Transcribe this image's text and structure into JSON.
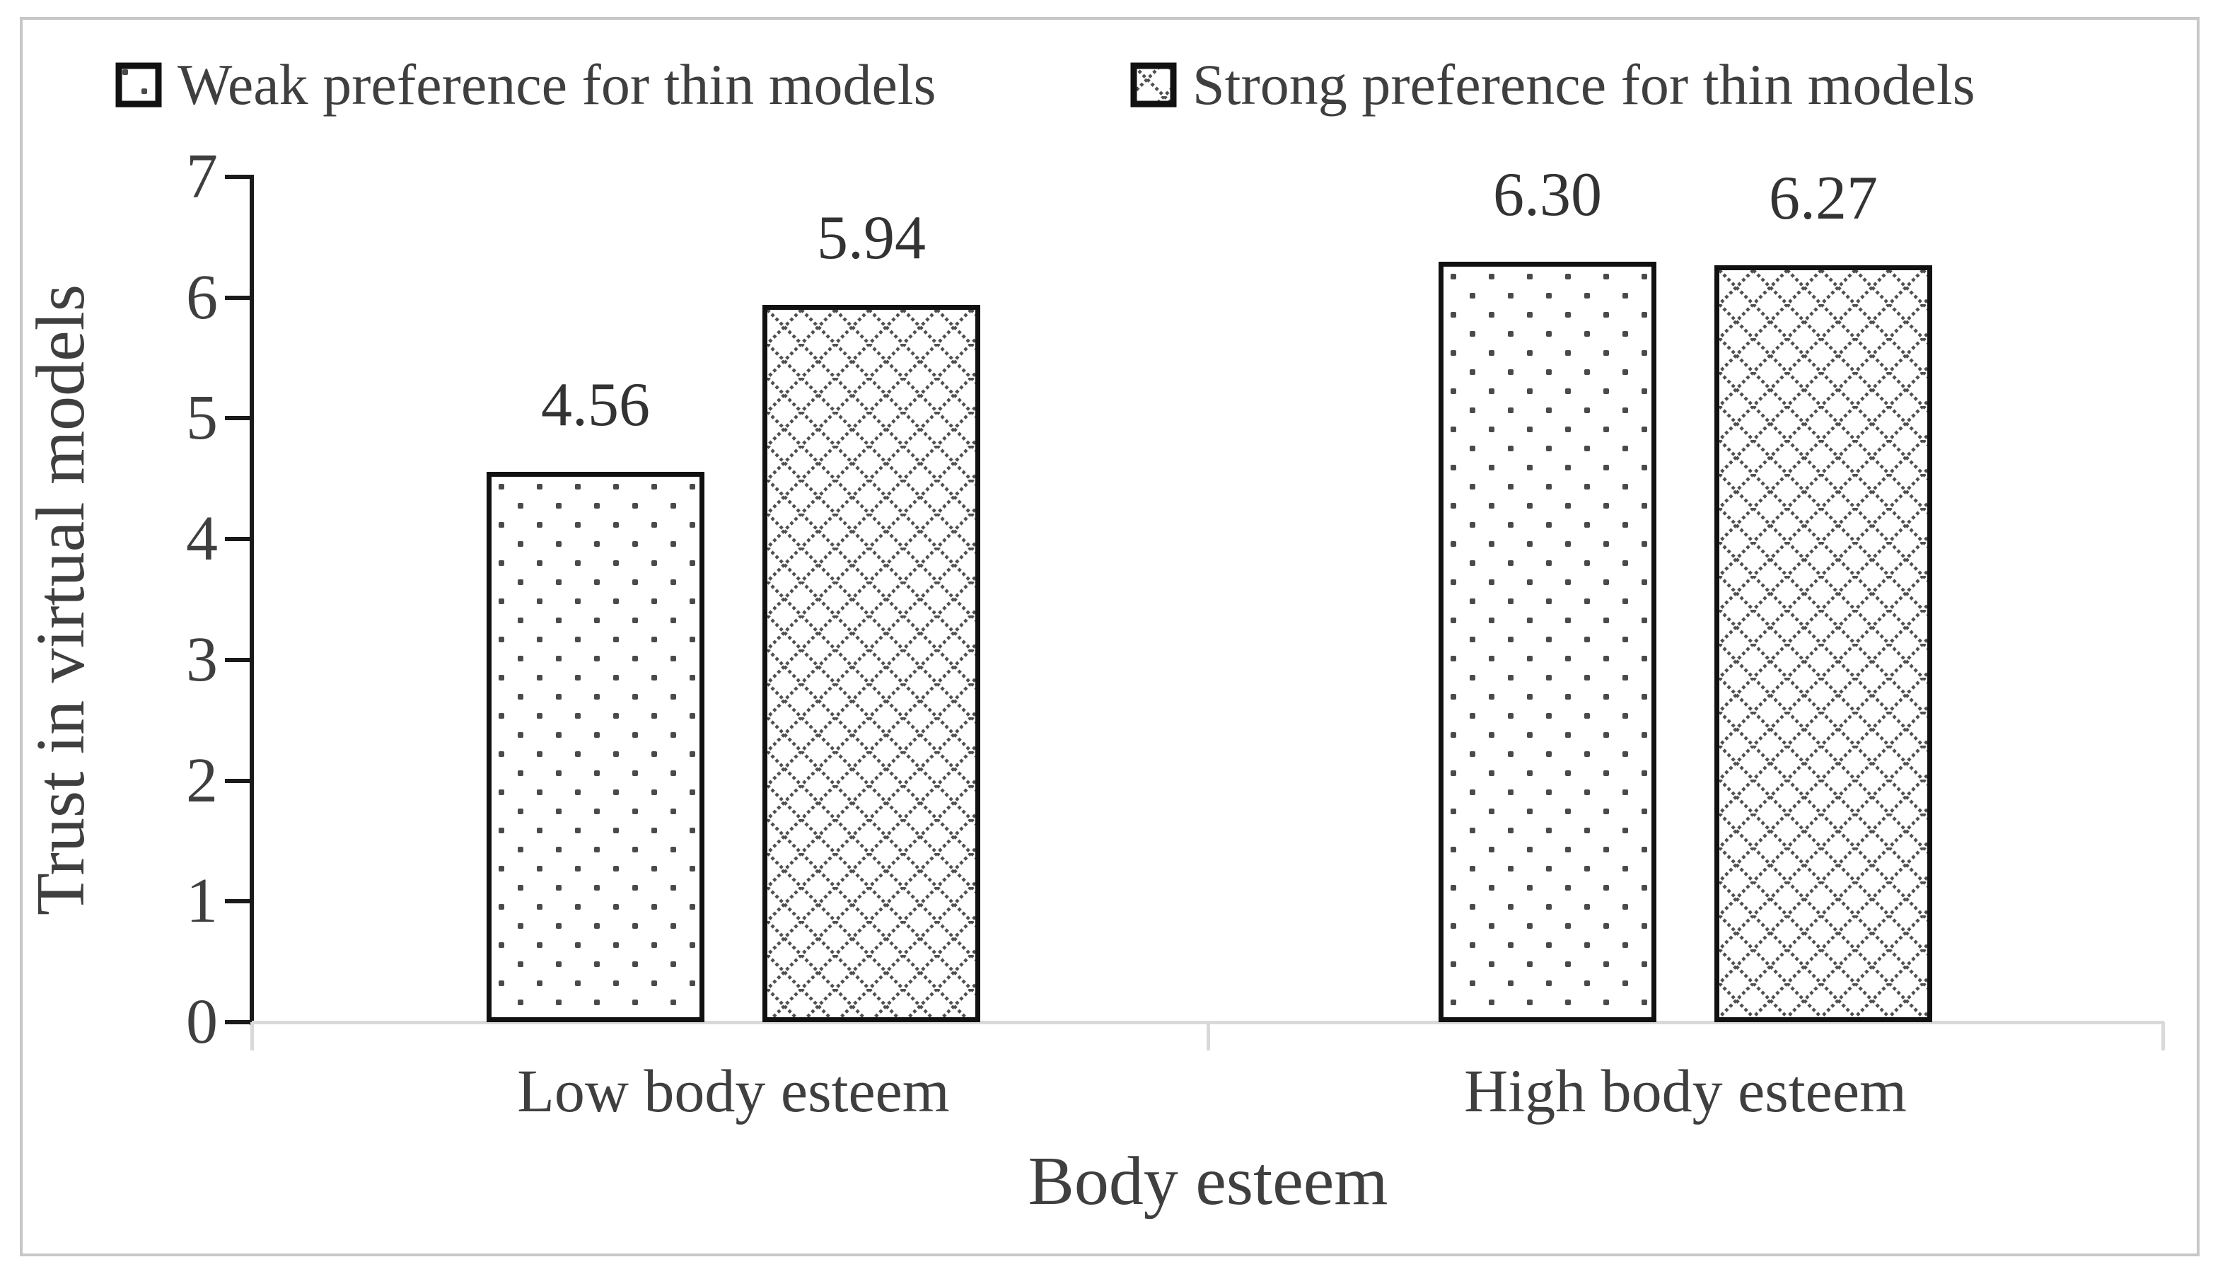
{
  "figure": {
    "background": "#ffffff",
    "border_color": "#c7c7c7"
  },
  "chart_data": {
    "type": "bar",
    "title": "",
    "categories": [
      "Low body esteem",
      "High body esteem"
    ],
    "series": [
      {
        "name": "Weak preference for thin models",
        "pattern": "dotted",
        "values": [
          4.56,
          6.3
        ],
        "labels": [
          "4.56",
          "6.30"
        ]
      },
      {
        "name": "Strong preference for thin models",
        "pattern": "crosshatch",
        "values": [
          5.94,
          6.27
        ],
        "labels": [
          "5.94",
          "6.27"
        ]
      }
    ],
    "xlabel": "Body esteem",
    "ylabel": "Trust in virtual models",
    "ylim": [
      0,
      7
    ],
    "yticks": [
      0,
      1,
      2,
      3,
      4,
      5,
      6,
      7
    ],
    "grid": false,
    "legend_position": "top",
    "bar_outline_color": "#111111",
    "pattern_ink_color": "#4a4a4a",
    "axis_color": "#1a1a1a",
    "baseline_color": "#d9d9d9",
    "text_color": "#3f3f3f"
  }
}
